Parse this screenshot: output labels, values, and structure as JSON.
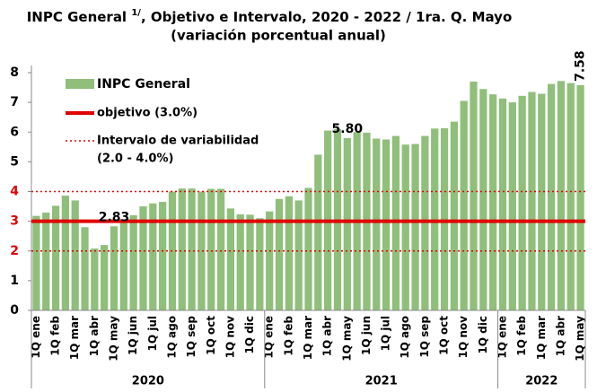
{
  "chart_data": {
    "type": "bar",
    "title_parts": [
      "INPC General ",
      "1/",
      ", Objetivo e Intervalo, 2020 - 2022 / 1ra. Q. Mayo"
    ],
    "subtitle": "(variación porcentual anual)",
    "groups": [
      {
        "label": "2020",
        "categories": [
          "1Q ene",
          null,
          "1Q feb",
          null,
          "1Q mar",
          null,
          "1Q abr",
          null,
          "1Q may",
          null,
          "1Q jun",
          null,
          "1Q jul",
          null,
          "1Q ago",
          null,
          "1Q sep",
          null,
          "1Q oct",
          null,
          "1Q nov",
          null,
          "1Q dic",
          null
        ]
      },
      {
        "label": "2021",
        "categories": [
          "1Q ene",
          null,
          "1Q feb",
          null,
          "1Q mar",
          null,
          "1Q abr",
          null,
          "1Q may",
          null,
          "1Q jun",
          null,
          "1Q jul",
          null,
          "1Q ago",
          null,
          "1Q sep",
          null,
          "1Q oct",
          null,
          "1Q nov",
          null,
          "1Q dic",
          null
        ]
      },
      {
        "label": "2022",
        "categories": [
          "1Q ene",
          null,
          "1Q feb",
          null,
          "1Q mar",
          null,
          "1Q abr",
          null,
          "1Q may"
        ]
      }
    ],
    "series": [
      {
        "name": "INPC General",
        "color": "#8fbf7a",
        "values": [
          3.18,
          3.29,
          3.52,
          3.86,
          3.7,
          2.8,
          2.08,
          2.2,
          2.83,
          2.95,
          3.2,
          3.5,
          3.6,
          3.65,
          4.0,
          4.1,
          4.1,
          4.0,
          4.09,
          4.09,
          3.43,
          3.23,
          3.22,
          3.1,
          3.33,
          3.75,
          3.84,
          3.7,
          4.12,
          5.24,
          6.05,
          6.1,
          5.8,
          6.0,
          5.98,
          5.78,
          5.75,
          5.87,
          5.58,
          5.6,
          5.87,
          6.12,
          6.13,
          6.35,
          7.05,
          7.7,
          7.45,
          7.27,
          7.13,
          7.0,
          7.22,
          7.35,
          7.29,
          7.62,
          7.72,
          7.65,
          7.58
        ],
        "value_labels": [
          null,
          null,
          null,
          null,
          null,
          null,
          null,
          null,
          "2.83",
          null,
          null,
          null,
          null,
          null,
          null,
          null,
          null,
          null,
          null,
          null,
          null,
          null,
          null,
          null,
          null,
          null,
          null,
          null,
          null,
          null,
          null,
          null,
          "5.80",
          null,
          null,
          null,
          null,
          null,
          null,
          null,
          null,
          null,
          null,
          null,
          null,
          null,
          null,
          null,
          null,
          null,
          null,
          null,
          null,
          null,
          null,
          null,
          "7.58"
        ]
      }
    ],
    "reference_lines": [
      {
        "name": [
          "objetivo (3.0%)"
        ],
        "values": [
          3
        ],
        "color": "#e00000",
        "style": "solid"
      },
      {
        "name": [
          "Intervalo de variabilidad",
          "(2.0 - 4.0%)"
        ],
        "values": [
          2,
          4
        ],
        "color": "#e00000",
        "style": "dotted"
      }
    ],
    "ylim": [
      0,
      8
    ],
    "yticks": [
      0,
      1,
      2,
      3,
      4,
      5,
      6,
      7,
      8
    ]
  }
}
